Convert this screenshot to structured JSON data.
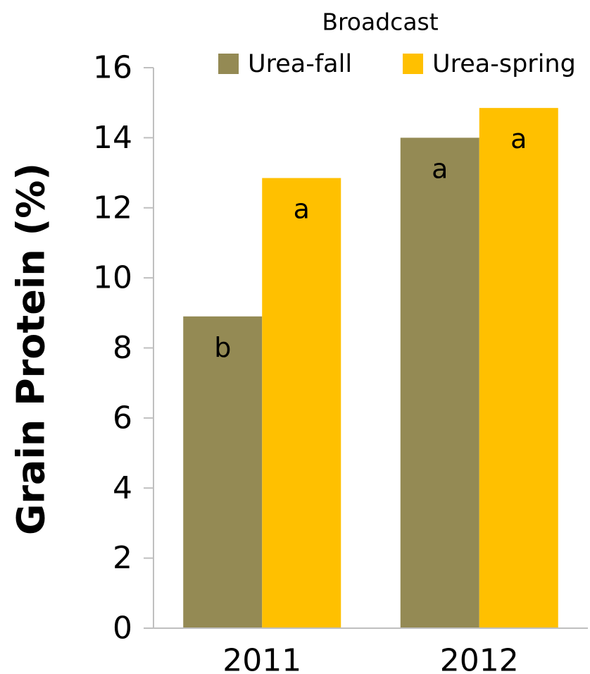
{
  "chart_data": {
    "type": "bar",
    "title": "",
    "xlabel": "",
    "ylabel": "Grain Protein (%)",
    "ylim": [
      0,
      16
    ],
    "yticks": [
      0,
      2,
      4,
      6,
      8,
      10,
      12,
      14,
      16
    ],
    "grid": false,
    "legend": {
      "title": "Broadcast",
      "placement": "top"
    },
    "categories": [
      "2011",
      "2012"
    ],
    "series": [
      {
        "name": "Urea-fall",
        "color": "#948a54",
        "values": [
          8.9,
          14.0
        ],
        "labels": [
          "b",
          "a"
        ]
      },
      {
        "name": "Urea-spring",
        "color": "#ffc000",
        "values": [
          12.85,
          14.85
        ],
        "labels": [
          "a",
          "a"
        ]
      }
    ]
  }
}
